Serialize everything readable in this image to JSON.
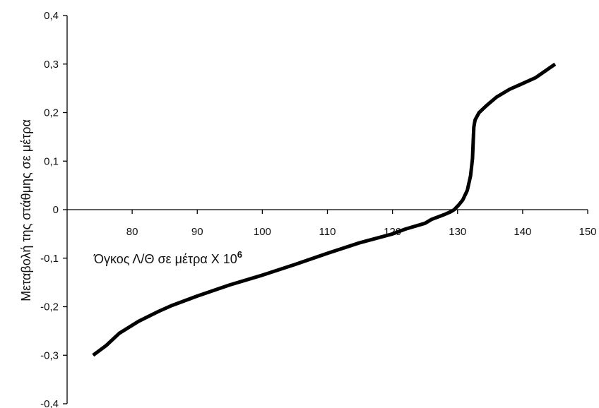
{
  "chart_data": {
    "type": "line",
    "title": "",
    "xlabel": "Όγκος Λ/Θ  σε μέτρα Χ 10",
    "xlabel_superscript": "6",
    "ylabel": "Μεταβολή της στάθμης σε μέτρα",
    "xlim": [
      70,
      150
    ],
    "ylim": [
      -0.4,
      0.4
    ],
    "x_ticks": [
      80,
      90,
      100,
      110,
      120,
      130,
      140,
      150
    ],
    "y_ticks": [
      -0.4,
      -0.3,
      -0.2,
      -0.1,
      0,
      0.1,
      0.2,
      0.3,
      0.4
    ],
    "x_tick_labels": [
      "80",
      "90",
      "100",
      "110",
      "120",
      "130",
      "140",
      "150"
    ],
    "y_tick_labels": [
      "-0,4",
      "-0,3",
      "-0,2",
      "-0,1",
      "0",
      "0,1",
      "0,2",
      "0,3",
      "0,4"
    ],
    "grid": false,
    "legend": false,
    "line_color": "#000000",
    "series": [
      {
        "x": [
          74,
          76,
          78,
          81,
          84,
          86,
          90,
          95,
          100,
          105,
          110,
          115,
          120,
          122,
          125,
          126,
          128,
          129,
          129.5,
          130.2,
          130.8,
          131.5,
          132,
          132.3,
          132.4,
          132.5,
          132.7,
          133.3,
          134.5,
          136,
          138,
          140,
          142,
          145
        ],
        "y": [
          -0.3,
          -0.28,
          -0.255,
          -0.23,
          -0.21,
          -0.198,
          -0.178,
          -0.155,
          -0.135,
          -0.113,
          -0.09,
          -0.068,
          -0.05,
          -0.04,
          -0.028,
          -0.02,
          -0.01,
          -0.004,
          0,
          0.01,
          0.02,
          0.04,
          0.07,
          0.105,
          0.14,
          0.17,
          0.185,
          0.2,
          0.215,
          0.232,
          0.248,
          0.26,
          0.272,
          0.3
        ]
      }
    ]
  }
}
